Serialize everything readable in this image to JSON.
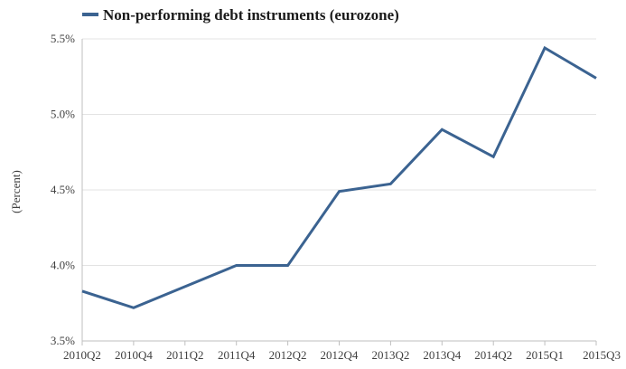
{
  "chart_data": {
    "type": "line",
    "title": "",
    "xlabel": "",
    "ylabel": "(Percent)",
    "categories": [
      "2010Q2",
      "2010Q4",
      "2011Q2",
      "2011Q4",
      "2012Q2",
      "2012Q4",
      "2013Q2",
      "2013Q4",
      "2014Q2",
      "2015Q1",
      "2015Q3"
    ],
    "series": [
      {
        "name": "Non-performing debt instruments (eurozone)",
        "color": "#3b6391",
        "values": [
          3.83,
          3.72,
          3.86,
          4.0,
          4.0,
          4.49,
          4.54,
          4.9,
          4.72,
          5.44,
          5.24
        ]
      }
    ],
    "ylim": [
      3.5,
      5.5
    ],
    "yticks": [
      3.5,
      4.0,
      4.5,
      5.0,
      5.5
    ],
    "ytick_labels": [
      "3.5%",
      "4.0%",
      "4.5%",
      "5.0%",
      "5.5%"
    ],
    "grid": "horizontal",
    "legend_position": "top-left",
    "colors": {
      "line": "#3b6391",
      "grid": "#e3e3e3",
      "axis": "#bfbfbf",
      "text": "#404040"
    }
  }
}
